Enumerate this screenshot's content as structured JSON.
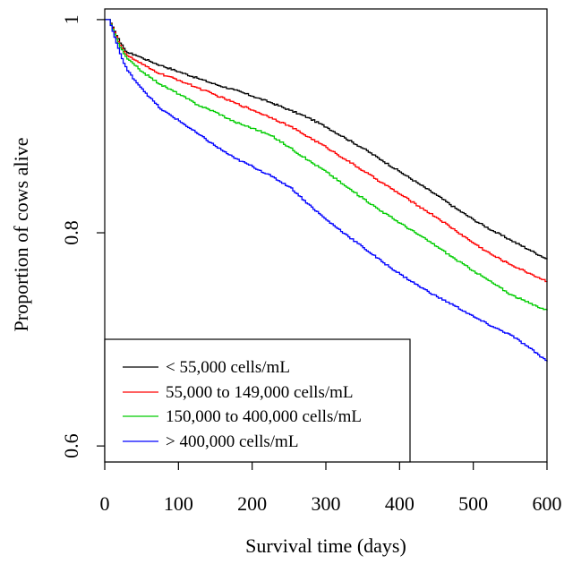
{
  "chart_data": {
    "type": "line",
    "title": "",
    "xlabel": "Survival time (days)",
    "ylabel": "Proportion of cows alive",
    "xlim": [
      0,
      600
    ],
    "ylim": [
      0.585,
      1.01
    ],
    "x_ticks": [
      0,
      100,
      200,
      300,
      400,
      500,
      600
    ],
    "x_tick_labels": [
      "0",
      "100",
      "200",
      "300",
      "400",
      "500",
      "600"
    ],
    "y_ticks": [
      0.6,
      0.8,
      1.0
    ],
    "y_tick_labels": [
      "0.6",
      "0.8",
      "1"
    ],
    "step": true,
    "grid": false,
    "legend_position": "bottom-left",
    "series": [
      {
        "name": "< 55,000 cells/mL",
        "color": "#000000",
        "x": [
          0,
          5,
          10,
          15,
          20,
          25,
          30,
          40,
          50,
          60,
          75,
          100,
          125,
          150,
          175,
          200,
          225,
          250,
          275,
          300,
          325,
          350,
          375,
          400,
          425,
          450,
          475,
          500,
          525,
          550,
          575,
          600
        ],
        "y": [
          1.0,
          1.0,
          0.993,
          0.985,
          0.978,
          0.973,
          0.969,
          0.967,
          0.964,
          0.961,
          0.957,
          0.951,
          0.945,
          0.939,
          0.934,
          0.928,
          0.922,
          0.915,
          0.908,
          0.899,
          0.889,
          0.879,
          0.868,
          0.857,
          0.846,
          0.835,
          0.823,
          0.812,
          0.802,
          0.793,
          0.784,
          0.775
        ]
      },
      {
        "name": "55,000 to 149,000 cells/mL",
        "color": "#ff0000",
        "x": [
          0,
          5,
          10,
          15,
          20,
          25,
          30,
          40,
          50,
          60,
          75,
          100,
          125,
          150,
          175,
          200,
          225,
          250,
          275,
          300,
          325,
          350,
          375,
          400,
          425,
          450,
          475,
          500,
          525,
          550,
          575,
          600
        ],
        "y": [
          1.0,
          1.0,
          0.992,
          0.984,
          0.976,
          0.97,
          0.966,
          0.962,
          0.958,
          0.954,
          0.949,
          0.943,
          0.936,
          0.929,
          0.922,
          0.915,
          0.908,
          0.9,
          0.89,
          0.88,
          0.869,
          0.858,
          0.847,
          0.836,
          0.825,
          0.814,
          0.802,
          0.79,
          0.779,
          0.77,
          0.762,
          0.754
        ]
      },
      {
        "name": "150,000 to 400,000 cells/mL",
        "color": "#00cc00",
        "x": [
          0,
          5,
          10,
          15,
          20,
          25,
          30,
          40,
          50,
          60,
          75,
          100,
          125,
          150,
          175,
          200,
          225,
          250,
          275,
          300,
          325,
          350,
          375,
          400,
          425,
          450,
          475,
          500,
          525,
          550,
          575,
          600
        ],
        "y": [
          1.0,
          1.0,
          0.991,
          0.982,
          0.974,
          0.968,
          0.963,
          0.957,
          0.951,
          0.946,
          0.939,
          0.93,
          0.92,
          0.913,
          0.904,
          0.898,
          0.891,
          0.88,
          0.868,
          0.857,
          0.844,
          0.832,
          0.82,
          0.809,
          0.798,
          0.787,
          0.775,
          0.764,
          0.753,
          0.742,
          0.734,
          0.727
        ]
      },
      {
        "name": "> 400,000 cells/mL",
        "color": "#0000ff",
        "x": [
          0,
          5,
          10,
          15,
          20,
          25,
          30,
          40,
          50,
          60,
          75,
          100,
          125,
          150,
          175,
          200,
          225,
          250,
          275,
          300,
          325,
          350,
          375,
          400,
          425,
          450,
          475,
          500,
          525,
          550,
          575,
          600
        ],
        "y": [
          1.0,
          1.0,
          0.989,
          0.978,
          0.968,
          0.959,
          0.952,
          0.943,
          0.935,
          0.927,
          0.916,
          0.905,
          0.893,
          0.881,
          0.87,
          0.862,
          0.853,
          0.843,
          0.827,
          0.812,
          0.799,
          0.786,
          0.773,
          0.761,
          0.75,
          0.74,
          0.731,
          0.721,
          0.712,
          0.704,
          0.692,
          0.679
        ]
      }
    ]
  }
}
